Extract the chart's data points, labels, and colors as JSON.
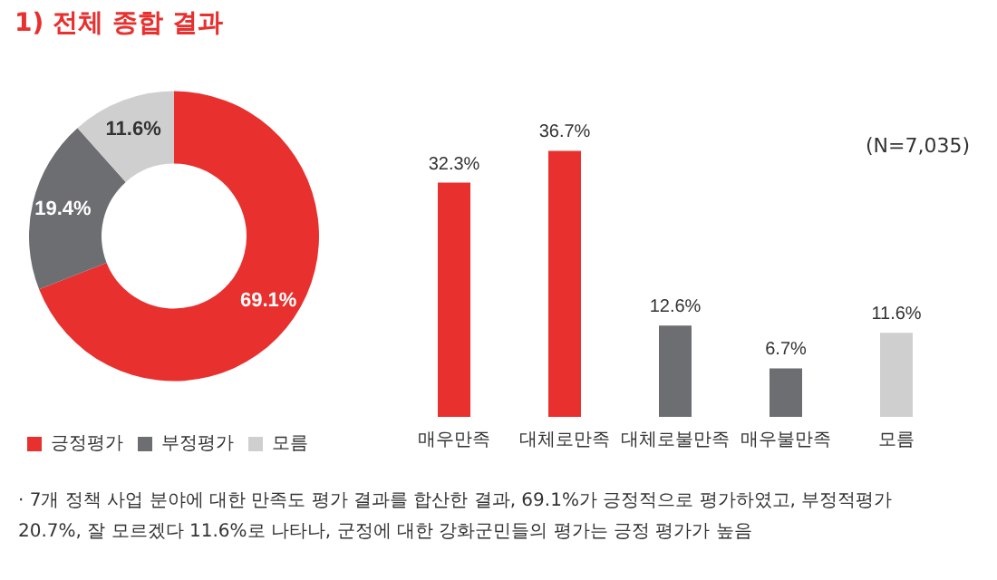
{
  "chart_data": [
    {
      "type": "donut",
      "title": "1) 전체 종합 결과",
      "categories": [
        "긍정평가",
        "부정평가",
        "모름"
      ],
      "values": [
        69.1,
        19.4,
        11.6
      ],
      "colors": [
        "#e8302e",
        "#6d6e71",
        "#cfcfcf"
      ],
      "value_labels": [
        "69.1%",
        "19.4%",
        "11.6%"
      ],
      "legend": "bottom",
      "annotations": [
        "· 7개 정책 사업 분야에 대한 만족도 평가 결과를 합산한 결과, 69.1%가 긍정적으로 평가하였고, 부정적평가 20.7%, 잘 모르겠다 11.6%로 나타나, 군정에 대한 강화군민들의 평가는 긍정 평가가 높음"
      ]
    },
    {
      "type": "bar",
      "categories": [
        "매우만족",
        "대체로만족",
        "대체로불만족",
        "매우불만족",
        "모름"
      ],
      "values": [
        32.3,
        36.7,
        12.6,
        6.7,
        11.6
      ],
      "colors": [
        "#e8302e",
        "#e8302e",
        "#6d6e71",
        "#6d6e71",
        "#cfcfcf"
      ],
      "value_labels": [
        "32.3%",
        "36.7%",
        "12.6%",
        "6.7%",
        "11.6%"
      ],
      "annotations": [
        "(N=7,035)"
      ]
    }
  ]
}
